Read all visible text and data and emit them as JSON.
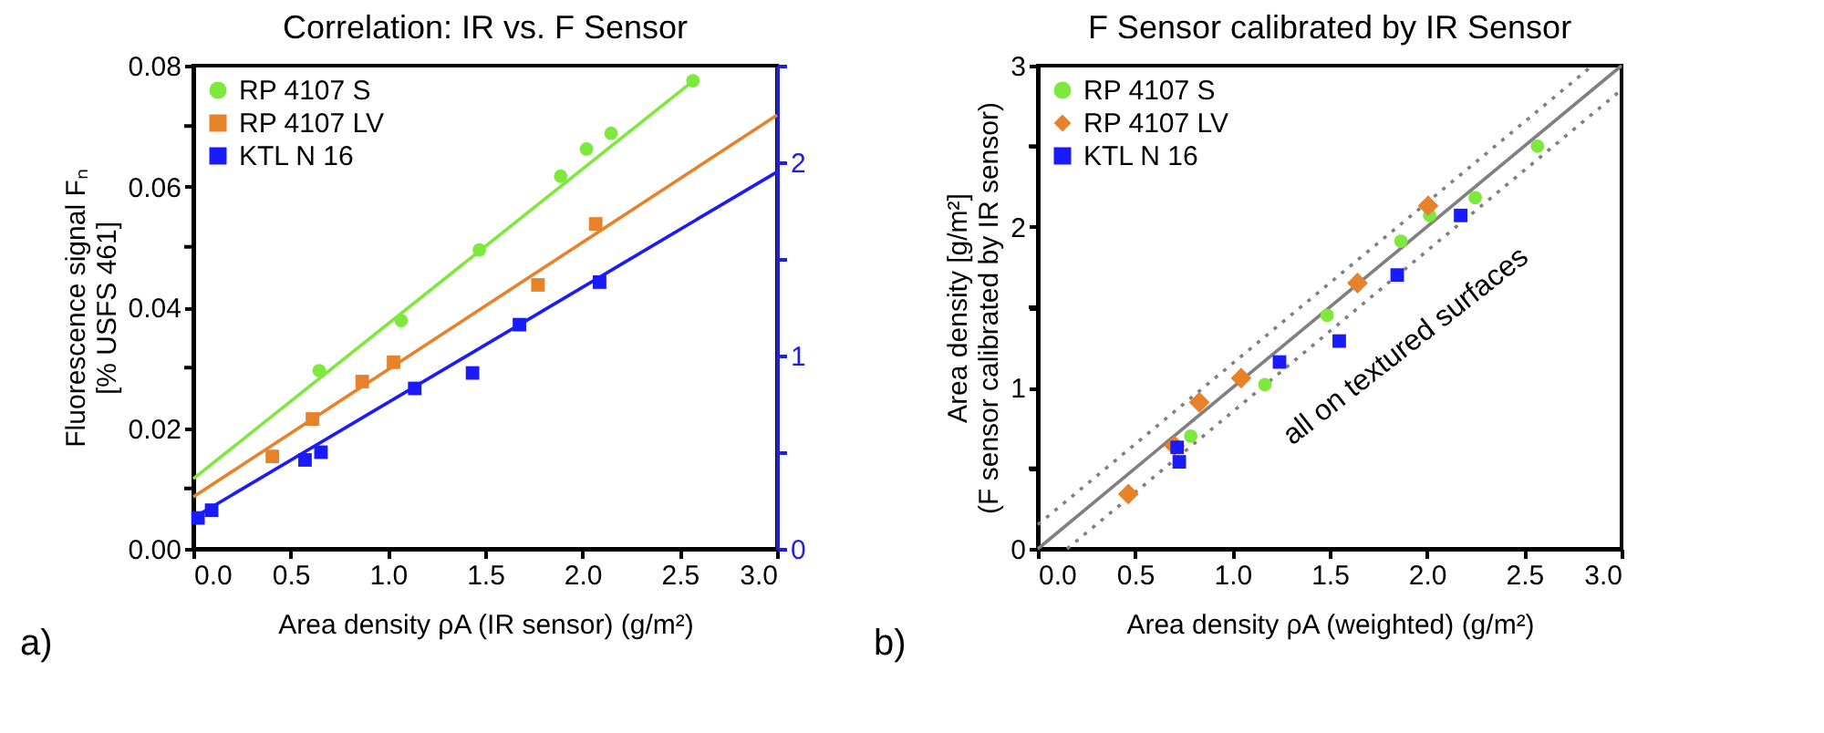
{
  "chart_data": [
    {
      "type": "scatter",
      "title": "Correlation: IR vs. F Sensor",
      "xlabel": "Area density ρA (IR sensor) (g/m²)",
      "ylabel": "Fluorescence signal Fₙ\n[% USFS 461]",
      "xlim": [
        0,
        3
      ],
      "xticks": [
        {
          "value": 0,
          "label": "0.0"
        },
        {
          "value": 0.5,
          "label": "0.5"
        },
        {
          "value": 1,
          "label": "1.0"
        },
        {
          "value": 1.5,
          "label": "1.5"
        },
        {
          "value": 2,
          "label": "2.0"
        },
        {
          "value": 2.5,
          "label": "2.5"
        },
        {
          "value": 3,
          "label": "3.0"
        }
      ],
      "ylim": [
        0,
        0.08
      ],
      "yticks": [
        {
          "value": 0,
          "label": "0.00"
        },
        {
          "value": 0.01,
          "label": null
        },
        {
          "value": 0.02,
          "label": "0.02"
        },
        {
          "value": 0.03,
          "label": null
        },
        {
          "value": 0.04,
          "label": "0.04"
        },
        {
          "value": 0.05,
          "label": null
        },
        {
          "value": 0.06,
          "label": "0.06"
        },
        {
          "value": 0.07,
          "label": null
        },
        {
          "value": 0.08,
          "label": "0.08"
        }
      ],
      "y2lim": [
        0,
        2.5
      ],
      "y2ticks": [
        0,
        {
          "value": 0.5,
          "label": null
        },
        1,
        {
          "value": 1.5,
          "label": null
        },
        2,
        {
          "value": 2.5,
          "label": null
        }
      ],
      "grid": false,
      "legend": "top left",
      "annotations": [
        "a)"
      ],
      "series": [
        {
          "name": "RP 4107 S",
          "type": "scatter",
          "marker": "circle",
          "color": "#7ee83f",
          "x": [
            0.647,
            1.068,
            1.47,
            1.888,
            2.021,
            2.147,
            2.568
          ],
          "values": [
            0.0295,
            0.0378,
            0.0495,
            0.0617,
            0.0662,
            0.0688,
            0.0775
          ]
        },
        {
          "name": "RP 4107 LV",
          "type": "scatter",
          "marker": "square",
          "color": "#e8822a",
          "x": [
            0.406,
            0.612,
            0.868,
            1.029,
            1.771,
            2.068
          ],
          "values": [
            0.0153,
            0.0215,
            0.0277,
            0.0309,
            0.0437,
            0.0538
          ]
        },
        {
          "name": "KTL N 16",
          "type": "scatter",
          "marker": "square",
          "color": "#1a1aff",
          "axis": "y2",
          "x": [
            0.024,
            0.094,
            0.574,
            0.656,
            1.138,
            1.435,
            1.676,
            2.088
          ],
          "values": [
            0.16,
            0.2,
            0.46,
            0.5,
            0.83,
            0.91,
            1.16,
            1.38
          ]
        },
        {
          "type": "line",
          "line_style": "solid",
          "color": "#7ee83f",
          "x": [
            0,
            2.57
          ],
          "values": [
            0.0116,
            0.0775
          ]
        },
        {
          "type": "line",
          "line_style": "solid",
          "color": "#e8822a",
          "x": [
            0,
            3
          ],
          "values": [
            0.0086,
            0.0718
          ]
        },
        {
          "type": "line",
          "line_style": "solid",
          "color": "#1a1aff",
          "axis": "y2",
          "x": [
            0,
            3
          ],
          "values": [
            0.16,
            1.95
          ]
        }
      ]
    },
    {
      "type": "scatter",
      "title": "F Sensor calibrated by IR Sensor",
      "xlabel": "Area density ρA (weighted) (g/m²)",
      "ylabel": "Area density [g/m²]\n(F sensor calibrated by IR sensor)",
      "xlim": [
        0,
        3
      ],
      "xticks": [
        {
          "value": 0,
          "label": "0.0"
        },
        {
          "value": 0.5,
          "label": "0.5"
        },
        {
          "value": 1,
          "label": "1.0"
        },
        {
          "value": 1.5,
          "label": "1.5"
        },
        {
          "value": 2,
          "label": "2.0"
        },
        {
          "value": 2.5,
          "label": "2.5"
        },
        {
          "value": 3,
          "label": "3.0"
        }
      ],
      "ylim": [
        0,
        3
      ],
      "yticks": [
        0,
        {
          "value": 0.5,
          "label": null
        },
        1,
        {
          "value": 1.5,
          "label": null
        },
        2,
        {
          "value": 2.5,
          "label": null
        },
        3
      ],
      "grid": false,
      "legend": "top left",
      "annotations": [
        "b)",
        "all on textured surfaces"
      ],
      "series": [
        {
          "type": "line",
          "line_style": "solid",
          "color": "#808080",
          "x": [
            0,
            3
          ],
          "values": [
            0,
            3
          ]
        },
        {
          "type": "line",
          "line_style": "dotted",
          "color": "#808080",
          "x": [
            0,
            2.85
          ],
          "values": [
            0.15,
            3
          ]
        },
        {
          "type": "line",
          "line_style": "dotted",
          "color": "#808080",
          "x": [
            0.15,
            3
          ],
          "values": [
            0,
            2.85
          ]
        },
        {
          "name": "RP 4107 S",
          "type": "scatter",
          "marker": "circle",
          "color": "#7ee83f",
          "x": [
            0.786,
            1.167,
            1.487,
            1.866,
            2.014,
            2.248,
            2.568
          ],
          "values": [
            0.7,
            1.02,
            1.45,
            1.91,
            2.07,
            2.18,
            2.5
          ]
        },
        {
          "name": "RP 4107 LV",
          "type": "scatter",
          "marker": "diamond",
          "color": "#e8822a",
          "x": [
            0.465,
            0.702,
            0.83,
            1.045,
            1.643,
            2.006
          ],
          "values": [
            0.34,
            0.64,
            0.91,
            1.06,
            1.65,
            2.13
          ]
        },
        {
          "name": "KTL N 16",
          "type": "scatter",
          "marker": "square",
          "color": "#1a1aff",
          "x": [
            0.716,
            0.727,
            1.242,
            1.549,
            1.847,
            2.173
          ],
          "values": [
            0.63,
            0.54,
            1.16,
            1.29,
            1.7,
            2.07
          ]
        }
      ]
    }
  ]
}
